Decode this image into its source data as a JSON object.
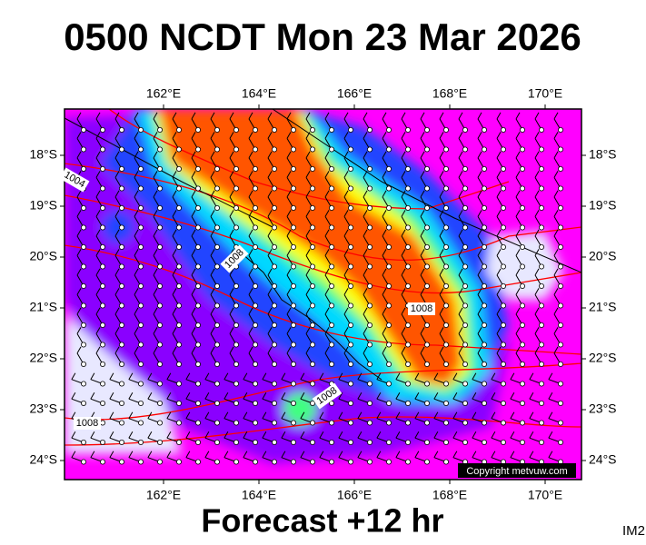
{
  "title": "0500 NCDT Mon 23 Mar 2026",
  "footer": "Forecast +12 hr",
  "image_id": "IM2",
  "copyright": "Copyright metvuw.com",
  "map": {
    "lon_labels": [
      "162°E",
      "164°E",
      "166°E",
      "168°E",
      "170°E"
    ],
    "lat_labels": [
      "18°S",
      "19°S",
      "20°S",
      "21°S",
      "22°S",
      "23°S",
      "24°S"
    ],
    "isobar_labels": [
      "1004",
      "1008",
      "1008",
      "1008",
      "1008"
    ]
  }
}
